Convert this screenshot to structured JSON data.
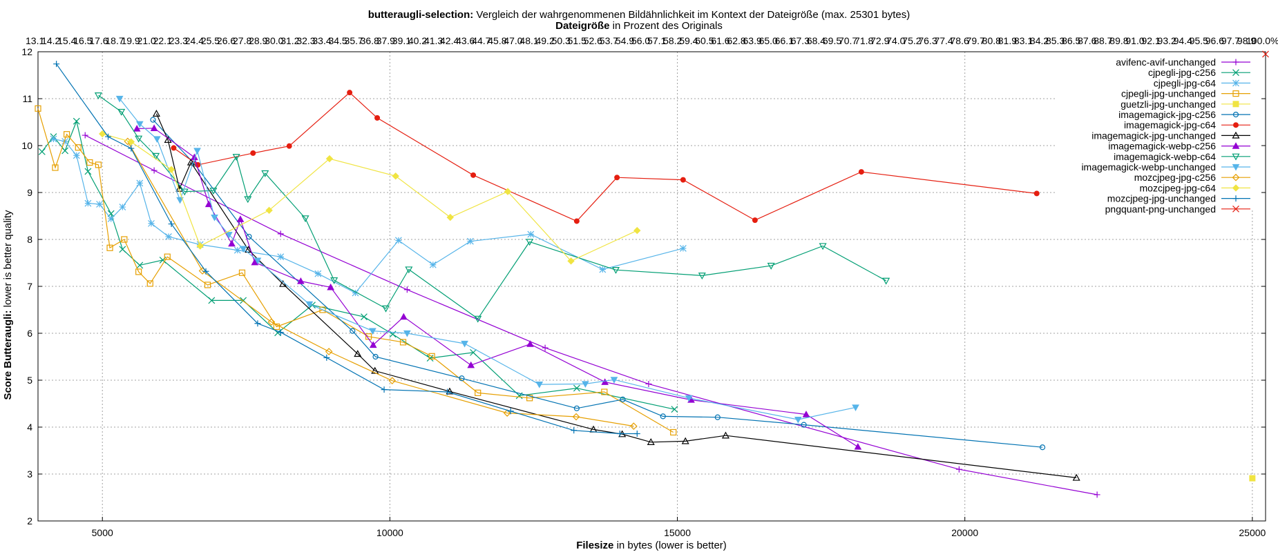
{
  "chart_data": {
    "type": "line",
    "title_bold": "butteraugli-selection:",
    "title_rest": " Vergleich der wahrgenommenen Bildähnlichkeit im Kontext der Dateigröße (max. 25301 bytes)",
    "subtitle_bold": "Dateigröße",
    "subtitle_rest": " in Prozent des Originals",
    "xlabel_bold": "Filesize",
    "xlabel_rest": " in bytes (lower is better)",
    "ylabel_bold": "Score Butteraugli:",
    "ylabel_rest": " lower is better quality",
    "xlim": [
      3880,
      25230
    ],
    "ylim": [
      2,
      12
    ],
    "xticks": [
      5000,
      10000,
      15000,
      20000,
      25000
    ],
    "xtick_labels": [
      "5000",
      "10000",
      "15000",
      "20000",
      "25000"
    ],
    "yticks": [
      2,
      3,
      4,
      5,
      6,
      7,
      8,
      9,
      10,
      11,
      12
    ],
    "ytick_labels": [
      "2",
      "3",
      "4",
      "5",
      "6",
      "7",
      "8",
      "9",
      "10",
      "11",
      "12"
    ],
    "x2_start_label": "13.1",
    "x2_end_label": "100.0%",
    "grid": true,
    "legend_position": "top-right",
    "series": [
      {
        "name": "avifenc-avif-unchanged",
        "color": "#9400d3",
        "marker": "plus",
        "x": [
          4700,
          5900,
          8100,
          10300,
          12700,
          14500,
          19900,
          22300
        ],
        "y": [
          10.22,
          9.47,
          8.12,
          6.93,
          5.69,
          4.92,
          3.1,
          2.56
        ]
      },
      {
        "name": "cjpegli-jpg-c256",
        "color": "#009e73",
        "marker": "x",
        "x": [
          3950,
          4150,
          4350,
          4550,
          4750,
          5150,
          5350,
          5650,
          6050,
          6900,
          7450,
          8050,
          8650,
          9550,
          10050,
          10700,
          11450,
          12250,
          13250,
          14950
        ],
        "y": [
          9.87,
          10.19,
          9.89,
          10.52,
          9.45,
          8.55,
          7.79,
          7.45,
          7.56,
          6.7,
          6.7,
          6.01,
          6.6,
          6.35,
          5.98,
          5.47,
          5.59,
          4.67,
          4.83,
          4.38
        ]
      },
      {
        "name": "cjpegli-jpg-c64",
        "color": "#56b4e9",
        "marker": "star",
        "x": [
          4150,
          4350,
          4550,
          4750,
          4950,
          5150,
          5350,
          5650,
          5850,
          6150,
          6700,
          7350,
          8100,
          8750,
          9400,
          10150,
          10750,
          11400,
          12450,
          13700,
          15100
        ],
        "y": [
          10.14,
          10.09,
          9.79,
          8.77,
          8.75,
          8.44,
          8.69,
          9.2,
          8.34,
          8.06,
          7.89,
          7.77,
          7.63,
          7.27,
          6.86,
          7.98,
          7.46,
          7.96,
          8.11,
          7.36,
          7.81
        ]
      },
      {
        "name": "cjpegli-jpg-unchanged",
        "color": "#e69f00",
        "marker": "square",
        "x": [
          3880,
          4180,
          4380,
          4580,
          4780,
          4930,
          5130,
          5380,
          5630,
          5830,
          6130,
          6830,
          7430,
          8030,
          8830,
          9630,
          10230,
          10730,
          11530,
          12430,
          13730,
          14930
        ],
        "y": [
          10.79,
          9.53,
          10.24,
          9.96,
          9.64,
          9.59,
          7.82,
          8.0,
          7.31,
          7.06,
          7.63,
          7.03,
          7.29,
          6.14,
          6.5,
          5.93,
          5.81,
          5.51,
          4.73,
          4.62,
          4.75,
          3.89
        ]
      },
      {
        "name": "guetzli-jpg-unchanged",
        "color": "#f0e442",
        "marker": "filled-square",
        "x": [
          25000
        ],
        "y": [
          2.91
        ]
      },
      {
        "name": "imagemagick-jpg-c256",
        "color": "#0072b2",
        "marker": "circle",
        "x": [
          5880,
          6600,
          7550,
          9350,
          9750,
          11250,
          13250,
          14050,
          14750,
          15700,
          17200,
          21350
        ],
        "y": [
          10.55,
          9.61,
          8.06,
          6.05,
          5.5,
          5.04,
          4.4,
          4.59,
          4.23,
          4.21,
          4.05,
          3.57
        ]
      },
      {
        "name": "imagemagick-jpg-c64",
        "color": "#e51e10",
        "marker": "filled-circle",
        "x": [
          6240,
          6660,
          7620,
          8250,
          9300,
          9780,
          11450,
          13250,
          13950,
          15100,
          16350,
          18200,
          21250
        ],
        "y": [
          9.95,
          9.59,
          9.84,
          9.99,
          11.13,
          10.59,
          9.37,
          8.39,
          9.32,
          9.27,
          8.41,
          9.44,
          8.98
        ]
      },
      {
        "name": "imagemagick-jpg-unchanged",
        "color": "#000000",
        "marker": "triangle",
        "x": [
          5940,
          6140,
          6340,
          6540,
          7540,
          8140,
          9440,
          9740,
          11040,
          13540,
          14040,
          14540,
          15140,
          15840,
          21940
        ],
        "y": [
          10.68,
          10.12,
          9.08,
          9.64,
          7.78,
          7.05,
          5.56,
          5.2,
          4.76,
          3.95,
          3.85,
          3.68,
          3.7,
          3.82,
          2.92
        ]
      },
      {
        "name": "imagemagick-webp-c256",
        "color": "#9400d3",
        "marker": "filled-triangle",
        "x": [
          5600,
          5900,
          6600,
          6850,
          7250,
          7400,
          7650,
          8450,
          8970,
          9710,
          10240,
          11410,
          12440,
          13740,
          15240,
          17240,
          18140
        ],
        "y": [
          10.36,
          10.37,
          9.75,
          8.75,
          7.91,
          8.43,
          7.51,
          7.11,
          6.98,
          5.75,
          6.35,
          5.32,
          5.77,
          4.96,
          4.58,
          4.27,
          3.58
        ]
      },
      {
        "name": "imagemagick-webp-c64",
        "color": "#009e73",
        "marker": "triangle-down",
        "x": [
          4930,
          5330,
          5630,
          5930,
          6430,
          6930,
          7330,
          7530,
          7830,
          8530,
          9030,
          9930,
          10330,
          11530,
          12430,
          13930,
          15430,
          16630,
          17530,
          18630
        ],
        "y": [
          11.07,
          10.72,
          10.15,
          9.78,
          9.02,
          9.04,
          9.76,
          8.86,
          9.41,
          8.45,
          7.13,
          6.53,
          7.36,
          6.31,
          7.95,
          7.35,
          7.23,
          7.44,
          7.86,
          7.12
        ]
      },
      {
        "name": "imagemagick-webp-unchanged",
        "color": "#56b4e9",
        "marker": "filled-triangle-down",
        "x": [
          5300,
          5650,
          5950,
          6350,
          6650,
          6950,
          7200,
          7450,
          7700,
          8600,
          9700,
          10300,
          11300,
          12600,
          13400,
          13900,
          15200,
          17100,
          18100
        ],
        "y": [
          11.0,
          10.46,
          10.14,
          8.84,
          9.89,
          8.47,
          8.1,
          7.8,
          7.55,
          6.62,
          6.05,
          6.0,
          5.78,
          4.91,
          4.92,
          5.01,
          4.62,
          4.16,
          4.42
        ]
      },
      {
        "name": "mozcjpeg-jpg-c256",
        "color": "#e69f00",
        "marker": "diamond",
        "x": [
          5440,
          6740,
          7940,
          8940,
          10040,
          12040,
          13240,
          14240
        ],
        "y": [
          10.09,
          7.33,
          6.24,
          5.61,
          4.99,
          4.3,
          4.22,
          4.02
        ]
      },
      {
        "name": "mozcjpeg-jpg-c64",
        "color": "#f0e442",
        "marker": "filled-diamond",
        "x": [
          5000,
          5500,
          6200,
          6700,
          7900,
          8950,
          10100,
          11050,
          12050,
          13150,
          14300
        ],
        "y": [
          10.25,
          10.08,
          9.49,
          7.86,
          8.62,
          9.72,
          9.35,
          8.47,
          9.02,
          7.54,
          8.19
        ]
      },
      {
        "name": "mozcjpeg-jpg-unchanged",
        "color": "#0072b2",
        "marker": "plus",
        "x": [
          4200,
          5100,
          5500,
          6200,
          6800,
          7700,
          8100,
          8900,
          9900,
          11000,
          12100,
          13200,
          14000,
          14300
        ],
        "y": [
          11.74,
          10.19,
          9.94,
          8.33,
          7.32,
          6.21,
          6.02,
          5.48,
          4.8,
          4.75,
          4.34,
          3.93,
          3.86,
          3.86
        ]
      },
      {
        "name": "pngquant-png-unchanged",
        "color": "#e51e10",
        "marker": "x",
        "x": [
          25230
        ],
        "y": [
          11.95
        ]
      }
    ]
  }
}
